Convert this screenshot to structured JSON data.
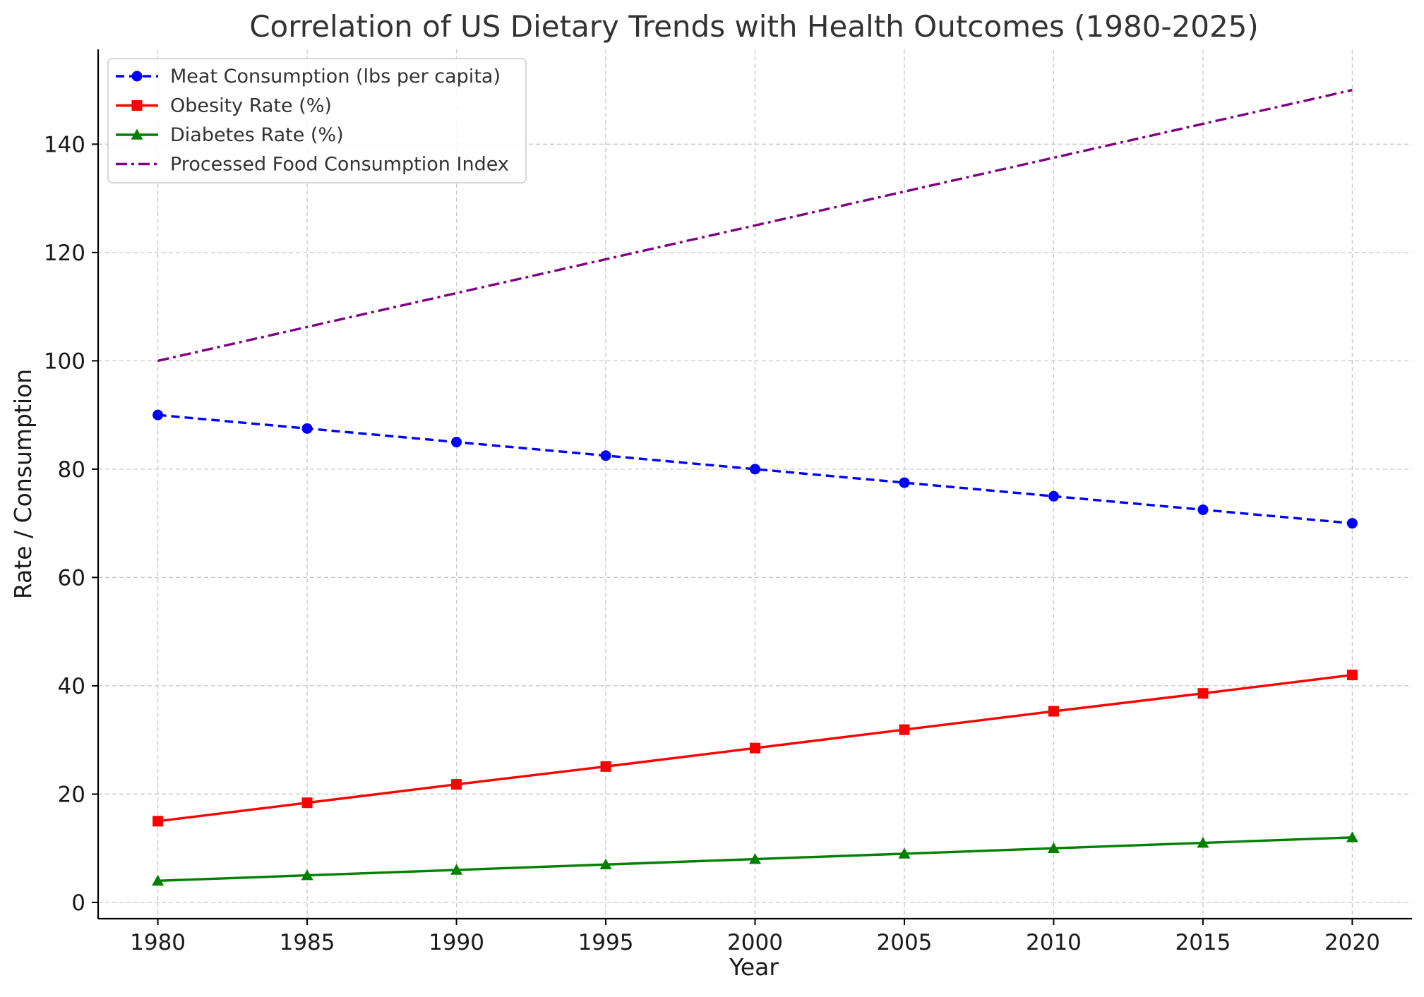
{
  "chart_data": {
    "type": "line",
    "title": "Correlation of US Dietary Trends with Health Outcomes (1980-2025)",
    "xlabel": "Year",
    "ylabel": "Rate / Consumption",
    "x": [
      1980,
      1985,
      1990,
      1995,
      2000,
      2005,
      2010,
      2015,
      2020
    ],
    "xticks": [
      "1980",
      "1985",
      "1990",
      "1995",
      "2000",
      "2005",
      "2010",
      "2015",
      "2020"
    ],
    "yticks": [
      "0",
      "20",
      "40",
      "60",
      "80",
      "100",
      "120",
      "140"
    ],
    "xlim": [
      1978,
      2022
    ],
    "ylim": [
      -3,
      157.5
    ],
    "grid": true,
    "legend_position": "top-left",
    "series": [
      {
        "name": "Meat Consumption (lbs per capita)",
        "values": [
          90,
          87.5,
          85,
          82.5,
          80,
          77.5,
          75,
          72.5,
          70
        ],
        "color": "#0000ff",
        "line_style": "dashed",
        "marker": "circle"
      },
      {
        "name": "Obesity Rate (%)",
        "values": [
          15,
          18.4,
          21.8,
          25.1,
          28.5,
          31.9,
          35.3,
          38.6,
          42
        ],
        "color": "#ff0000",
        "line_style": "solid",
        "marker": "square"
      },
      {
        "name": "Diabetes Rate (%)",
        "values": [
          4,
          5,
          6,
          7,
          8,
          9,
          10,
          11,
          12
        ],
        "color": "#008000",
        "line_style": "solid",
        "marker": "triangle"
      },
      {
        "name": "Processed Food Consumption Index",
        "values": [
          100,
          106.25,
          112.5,
          118.75,
          125,
          131.25,
          137.5,
          143.75,
          150
        ],
        "color": "#800080",
        "line_style": "dashdot",
        "marker": "none"
      }
    ]
  }
}
